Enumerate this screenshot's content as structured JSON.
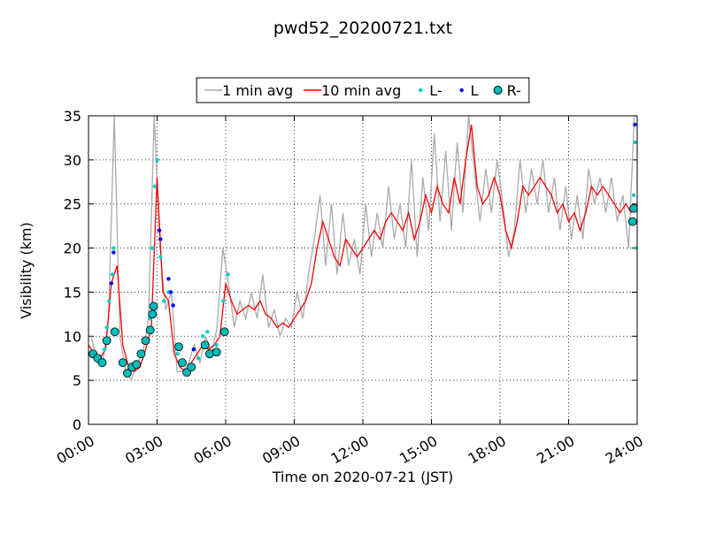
{
  "chart_data": {
    "type": "line",
    "title": "pwd52_20200721.txt",
    "x_label": "Time on 2020-07-21 (JST)",
    "y_label": "Visibility (km)",
    "xlim": [
      0,
      24
    ],
    "ylim": [
      0,
      35
    ],
    "grid": true,
    "legend": "upper center",
    "xticks": [
      {
        "value": 0,
        "label": "00:00"
      },
      {
        "value": 3,
        "label": "03:00"
      },
      {
        "value": 6,
        "label": "06:00"
      },
      {
        "value": 9,
        "label": "09:00"
      },
      {
        "value": 12,
        "label": "12:00"
      },
      {
        "value": 15,
        "label": "15:00"
      },
      {
        "value": 18,
        "label": "18:00"
      },
      {
        "value": 21,
        "label": "21:00"
      },
      {
        "value": 24,
        "label": "24:00"
      }
    ],
    "yticks": [
      0,
      5,
      10,
      15,
      20,
      25,
      30,
      35
    ],
    "series": [
      {
        "name": "1 min avg",
        "style": "line",
        "color": "#aaaaaa",
        "x": [
          0.125,
          0.375,
          0.625,
          0.875,
          1.125,
          1.375,
          1.625,
          1.875,
          2.125,
          2.375,
          2.625,
          2.875,
          3.125,
          3.375,
          3.625,
          3.875,
          4.125,
          4.375,
          4.625,
          4.875,
          5.125,
          5.375,
          5.625,
          5.875,
          6.125,
          6.375,
          6.625,
          6.875,
          7.125,
          7.375,
          7.625,
          7.875,
          8.125,
          8.375,
          8.625,
          8.875,
          9.125,
          9.375,
          9.625,
          9.875,
          10.125,
          10.375,
          10.625,
          10.875,
          11.125,
          11.375,
          11.625,
          11.875,
          12.125,
          12.375,
          12.625,
          12.875,
          13.125,
          13.375,
          13.625,
          13.875,
          14.125,
          14.375,
          14.625,
          14.875,
          15.125,
          15.375,
          15.625,
          15.875,
          16.125,
          16.375,
          16.625,
          16.875,
          17.125,
          17.375,
          17.625,
          17.875,
          18.125,
          18.375,
          18.625,
          18.875,
          19.125,
          19.375,
          19.625,
          19.875,
          20.125,
          20.375,
          20.625,
          20.875,
          21.125,
          21.375,
          21.625,
          21.875,
          22.125,
          22.375,
          22.625,
          22.875,
          23.125,
          23.375,
          23.625,
          23.875
        ],
        "values": [
          10,
          7,
          7,
          12,
          35,
          10,
          6,
          5,
          7,
          8,
          12,
          35,
          20,
          13,
          15,
          6,
          6,
          7,
          9,
          7,
          10,
          8,
          11,
          20,
          16,
          11,
          14,
          12,
          15,
          12,
          17,
          11,
          13,
          10,
          12,
          11,
          15,
          12,
          17,
          21,
          26,
          18,
          25,
          17,
          24,
          18,
          21,
          17,
          25,
          19,
          24,
          20,
          27,
          21,
          25,
          20,
          30,
          19,
          28,
          22,
          33,
          23,
          31,
          22,
          32,
          24,
          35,
          29,
          23,
          29,
          24,
          30,
          25,
          19,
          22,
          30,
          24,
          29,
          25,
          30,
          24,
          28,
          22,
          27,
          21,
          26,
          21,
          29,
          25,
          28,
          24,
          28,
          23,
          26,
          20,
          35
        ]
      },
      {
        "name": "10 min avg",
        "style": "line",
        "color": "#ff0000",
        "x": [
          0,
          0.25,
          0.5,
          0.75,
          1,
          1.25,
          1.5,
          1.75,
          2,
          2.25,
          2.5,
          2.75,
          3,
          3.25,
          3.5,
          3.75,
          4,
          4.25,
          4.5,
          4.75,
          5,
          5.25,
          5.5,
          5.75,
          6,
          6.25,
          6.5,
          6.75,
          7,
          7.25,
          7.5,
          7.75,
          8,
          8.25,
          8.5,
          8.75,
          9,
          9.25,
          9.5,
          9.75,
          10,
          10.25,
          10.5,
          10.75,
          11,
          11.25,
          11.5,
          11.75,
          12,
          12.25,
          12.5,
          12.75,
          13,
          13.25,
          13.5,
          13.75,
          14,
          14.25,
          14.5,
          14.75,
          15,
          15.25,
          15.5,
          15.75,
          16,
          16.25,
          16.5,
          16.75,
          17,
          17.25,
          17.5,
          17.75,
          18,
          18.25,
          18.5,
          18.75,
          19,
          19.25,
          19.5,
          19.75,
          20,
          20.25,
          20.5,
          20.75,
          21,
          21.25,
          21.5,
          21.75,
          22,
          22.25,
          22.5,
          22.75,
          23,
          23.25,
          23.5,
          23.75
        ],
        "values": [
          9,
          8,
          7.5,
          8.5,
          16,
          18,
          9,
          6.5,
          6,
          6.5,
          8.5,
          11,
          28,
          15,
          14,
          8,
          6.5,
          6,
          7,
          8,
          9,
          8.5,
          9,
          10,
          16,
          14,
          12.5,
          13,
          13.5,
          13,
          14,
          12.5,
          12,
          11,
          11.5,
          11,
          12,
          13,
          14,
          16,
          20,
          23,
          21,
          19,
          18,
          21,
          20,
          19,
          20,
          21,
          22,
          21,
          23,
          24,
          23,
          22,
          24,
          21,
          23,
          26,
          24,
          27,
          25,
          24,
          28,
          25,
          30,
          34,
          27,
          25,
          26,
          28,
          26,
          22,
          20,
          23,
          27,
          26,
          27,
          28,
          27,
          26,
          24,
          25,
          23,
          24,
          22,
          24,
          27,
          26,
          27,
          26,
          25,
          24,
          25,
          24
        ]
      },
      {
        "name": "L-",
        "style": "dots",
        "color": "#00cccc",
        "x": [
          0.2,
          0.7,
          0.8,
          0.9,
          1.05,
          1.1,
          1.5,
          1.7,
          2.0,
          2.4,
          2.7,
          2.8,
          2.9,
          3.0,
          3.15,
          3.3,
          3.5,
          3.9,
          4.3,
          4.8,
          5.0,
          5.2,
          5.6,
          5.9,
          6.1,
          23.85,
          23.9,
          23.95
        ],
        "values": [
          8,
          8.5,
          11,
          14,
          17,
          20,
          7,
          6,
          6.5,
          8,
          12,
          20,
          27,
          30,
          19,
          14,
          15,
          8,
          6,
          7.5,
          10,
          10.5,
          9,
          14,
          17,
          26,
          32,
          20
        ]
      },
      {
        "name": "L",
        "style": "dots",
        "color": "#0000ff",
        "x": [
          1.0,
          1.1,
          3.1,
          3.15,
          3.5,
          3.6,
          3.7,
          4.6,
          23.9
        ],
        "values": [
          16,
          19.5,
          22,
          21,
          16.5,
          15,
          13.5,
          8.5,
          34
        ]
      },
      {
        "name": "R-",
        "style": "dots",
        "color": "#00bbbb",
        "edgecolor": "#000000",
        "x": [
          0.2,
          0.4,
          0.6,
          0.8,
          1.15,
          1.5,
          1.7,
          1.9,
          2.1,
          2.3,
          2.5,
          2.7,
          2.8,
          2.85,
          3.95,
          4.1,
          4.3,
          4.5,
          5.1,
          5.3,
          5.6,
          5.95,
          23.8,
          23.85
        ],
        "values": [
          8,
          7.5,
          7,
          9.5,
          10.5,
          7,
          5.8,
          6.5,
          6.8,
          8,
          9.5,
          10.7,
          12.5,
          13.4,
          8.8,
          7,
          5.9,
          6.5,
          9,
          8,
          8.2,
          10.5,
          23,
          24.5
        ]
      }
    ]
  }
}
